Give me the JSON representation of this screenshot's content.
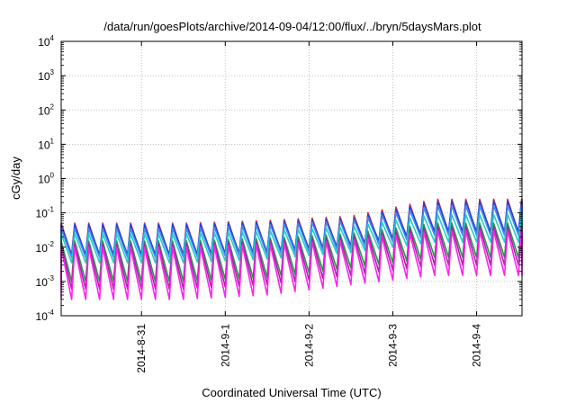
{
  "chart_data": {
    "type": "line",
    "title": "/data/run/goesPlots/archive/2014-09-04/12:00/flux/../bryn/5daysMars.plot",
    "xlabel": "Coordinated Universal Time (UTC)",
    "ylabel": "cGy/day",
    "y_scale": "log",
    "ylim": [
      0.0001,
      10000
    ],
    "xlim": [
      "2014-08-30T01:00",
      "2014-09-04T13:00"
    ],
    "grid": true,
    "x_ticks": [
      "2014-8-31",
      "2014-9-1",
      "2014-9-2",
      "2014-9-3",
      "2014-9-4"
    ],
    "y_ticks": [
      {
        "base": "10",
        "exp": "-4"
      },
      {
        "base": "10",
        "exp": "-3"
      },
      {
        "base": "10",
        "exp": "-2"
      },
      {
        "base": "10",
        "exp": "-1"
      },
      {
        "base": "10",
        "exp": "0"
      },
      {
        "base": "10",
        "exp": "1"
      },
      {
        "base": "10",
        "exp": "2"
      },
      {
        "base": "10",
        "exp": "3"
      },
      {
        "base": "10",
        "exp": "4"
      }
    ],
    "sawtooth_period_hours": 4,
    "series": [
      {
        "color": "#ee2222",
        "peak": [
          0.05,
          0.05,
          0.06,
          0.08,
          0.25
        ],
        "trough": [
          0.0055,
          0.0055,
          0.0065,
          0.01,
          0.025
        ]
      },
      {
        "color": "#2244dd",
        "peak": [
          0.045,
          0.045,
          0.055,
          0.07,
          0.22
        ],
        "trough": [
          0.006,
          0.006,
          0.007,
          0.011,
          0.028
        ]
      },
      {
        "color": "#4488ee",
        "peak": [
          0.035,
          0.035,
          0.045,
          0.06,
          0.16
        ],
        "trough": [
          0.005,
          0.005,
          0.006,
          0.009,
          0.022
        ]
      },
      {
        "color": "#22cccc",
        "peak": [
          0.025,
          0.025,
          0.03,
          0.04,
          0.09
        ],
        "trough": [
          0.0035,
          0.0035,
          0.0045,
          0.007,
          0.014
        ]
      },
      {
        "color": "#229944",
        "peak": [
          0.015,
          0.015,
          0.018,
          0.025,
          0.05
        ],
        "trough": [
          0.001,
          0.001,
          0.0013,
          0.0025,
          0.005
        ]
      },
      {
        "color": "#aa22aa",
        "peak": [
          0.012,
          0.012,
          0.015,
          0.02,
          0.04
        ],
        "trough": [
          0.0006,
          0.0006,
          0.0008,
          0.0015,
          0.003
        ]
      },
      {
        "color": "#ff22ee",
        "peak": [
          0.01,
          0.01,
          0.012,
          0.016,
          0.03
        ],
        "trough": [
          0.0003,
          0.0003,
          0.0004,
          0.0008,
          0.0015
        ]
      }
    ]
  }
}
